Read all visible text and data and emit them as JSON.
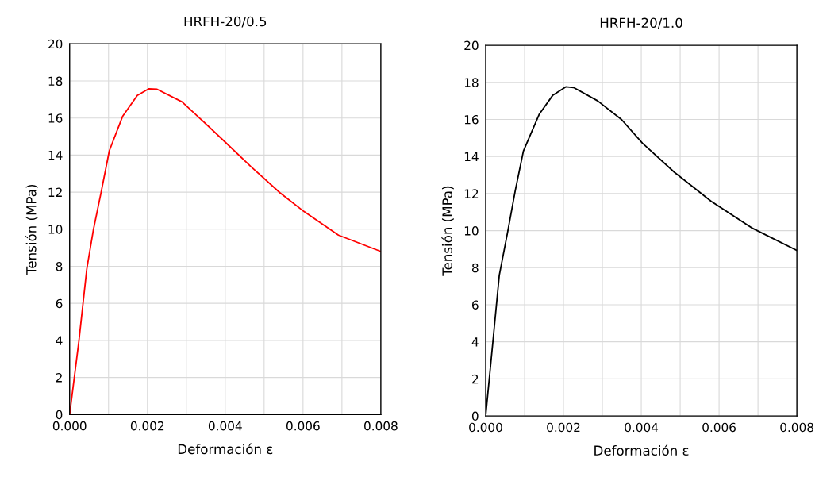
{
  "chart_data": [
    {
      "type": "line",
      "title": "HRFH-20/0.5",
      "xlabel": "Deformación ε",
      "ylabel": "Tensión (MPa)",
      "xlim": [
        0,
        0.008
      ],
      "ylim": [
        0,
        20
      ],
      "xticks": [
        {
          "value": 0,
          "label": "0.000"
        },
        {
          "value": 0.001,
          "label": null
        },
        {
          "value": 0.002,
          "label": "0.002"
        },
        {
          "value": 0.003,
          "label": null
        },
        {
          "value": 0.004,
          "label": "0.004"
        },
        {
          "value": 0.005,
          "label": null
        },
        {
          "value": 0.006,
          "label": "0.006"
        },
        {
          "value": 0.007,
          "label": null
        },
        {
          "value": 0.008,
          "label": "0.008"
        }
      ],
      "yticks": [
        0,
        2,
        4,
        6,
        8,
        10,
        12,
        14,
        16,
        18,
        20
      ],
      "grid": true,
      "legend": false,
      "marker": "none",
      "line_style": "solid",
      "series": [
        {
          "color": "#ff0000",
          "x": [
            0,
            0.00024,
            0.00044,
            0.00061,
            0.00082,
            0.00102,
            0.00136,
            0.00174,
            0.00204,
            0.00225,
            0.00289,
            0.00337,
            0.00402,
            0.00466,
            0.00541,
            0.00602,
            0.00691,
            0.008
          ],
          "values": [
            0,
            3.99,
            7.83,
            9.96,
            12.1,
            14.23,
            16.08,
            17.22,
            17.58,
            17.55,
            16.87,
            15.94,
            14.66,
            13.38,
            11.96,
            10.96,
            9.68,
            8.8
          ]
        }
      ]
    },
    {
      "type": "line",
      "title": "HRFH-20/1.0",
      "xlabel": "Deformación ε",
      "ylabel": "Tensión (MPa)",
      "xlim": [
        0,
        0.008
      ],
      "ylim": [
        0,
        20
      ],
      "xticks": [
        {
          "value": 0,
          "label": "0.000"
        },
        {
          "value": 0.001,
          "label": null
        },
        {
          "value": 0.002,
          "label": "0.002"
        },
        {
          "value": 0.003,
          "label": null
        },
        {
          "value": 0.004,
          "label": "0.004"
        },
        {
          "value": 0.005,
          "label": null
        },
        {
          "value": 0.006,
          "label": "0.006"
        },
        {
          "value": 0.007,
          "label": null
        },
        {
          "value": 0.008,
          "label": "0.008"
        }
      ],
      "yticks": [
        0,
        2,
        4,
        6,
        8,
        10,
        12,
        14,
        16,
        18,
        20
      ],
      "grid": true,
      "legend": false,
      "marker": "none",
      "line_style": "solid",
      "series": [
        {
          "color": "#000000",
          "x": [
            0,
            0.00018,
            0.00035,
            0.00056,
            0.00076,
            0.00097,
            0.00138,
            0.00172,
            0.00206,
            0.00226,
            0.00288,
            0.00349,
            0.00403,
            0.00485,
            0.0058,
            0.00683,
            0.008
          ],
          "values": [
            0,
            3.88,
            7.59,
            9.87,
            12.15,
            14.29,
            16.29,
            17.29,
            17.76,
            17.72,
            17.0,
            16.0,
            14.72,
            13.15,
            11.58,
            10.16,
            8.93
          ]
        }
      ]
    }
  ]
}
